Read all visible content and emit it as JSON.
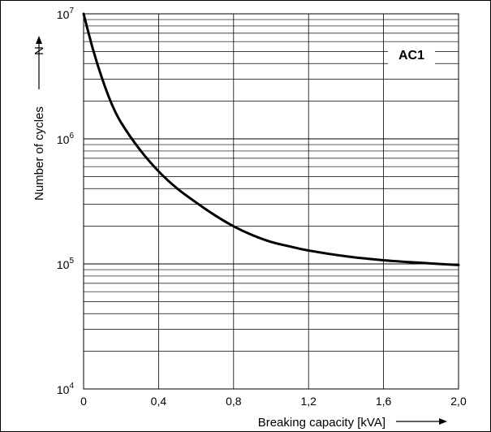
{
  "chart_data": {
    "type": "line",
    "title": "",
    "xlabel": "Breaking capacity [kVA]",
    "ylabel": "Number of cycles",
    "ylabel_symbol": "N",
    "xlim": [
      0,
      2.0
    ],
    "ylim": [
      10000,
      10000000
    ],
    "y_scale": "log",
    "grid": true,
    "x_ticks": [
      "0",
      "0,4",
      "0,8",
      "1,2",
      "1,6",
      "2,0"
    ],
    "y_ticks": [
      {
        "base": "10",
        "exp": "4"
      },
      {
        "base": "10",
        "exp": "5"
      },
      {
        "base": "10",
        "exp": "6"
      },
      {
        "base": "10",
        "exp": "7"
      }
    ],
    "annotation": "AC1",
    "series": [
      {
        "x": [
          0.0,
          0.05,
          0.1,
          0.15,
          0.2,
          0.3,
          0.4,
          0.5,
          0.6,
          0.7,
          0.8,
          0.9,
          1.0,
          1.1,
          1.2,
          1.4,
          1.6,
          1.8,
          2.0
        ],
        "y": [
          10000000,
          5200000,
          3000000,
          1900000,
          1350000,
          820000,
          550000,
          400000,
          310000,
          245000,
          200000,
          170000,
          150000,
          138000,
          128000,
          115000,
          107000,
          102000,
          98000
        ]
      }
    ]
  }
}
